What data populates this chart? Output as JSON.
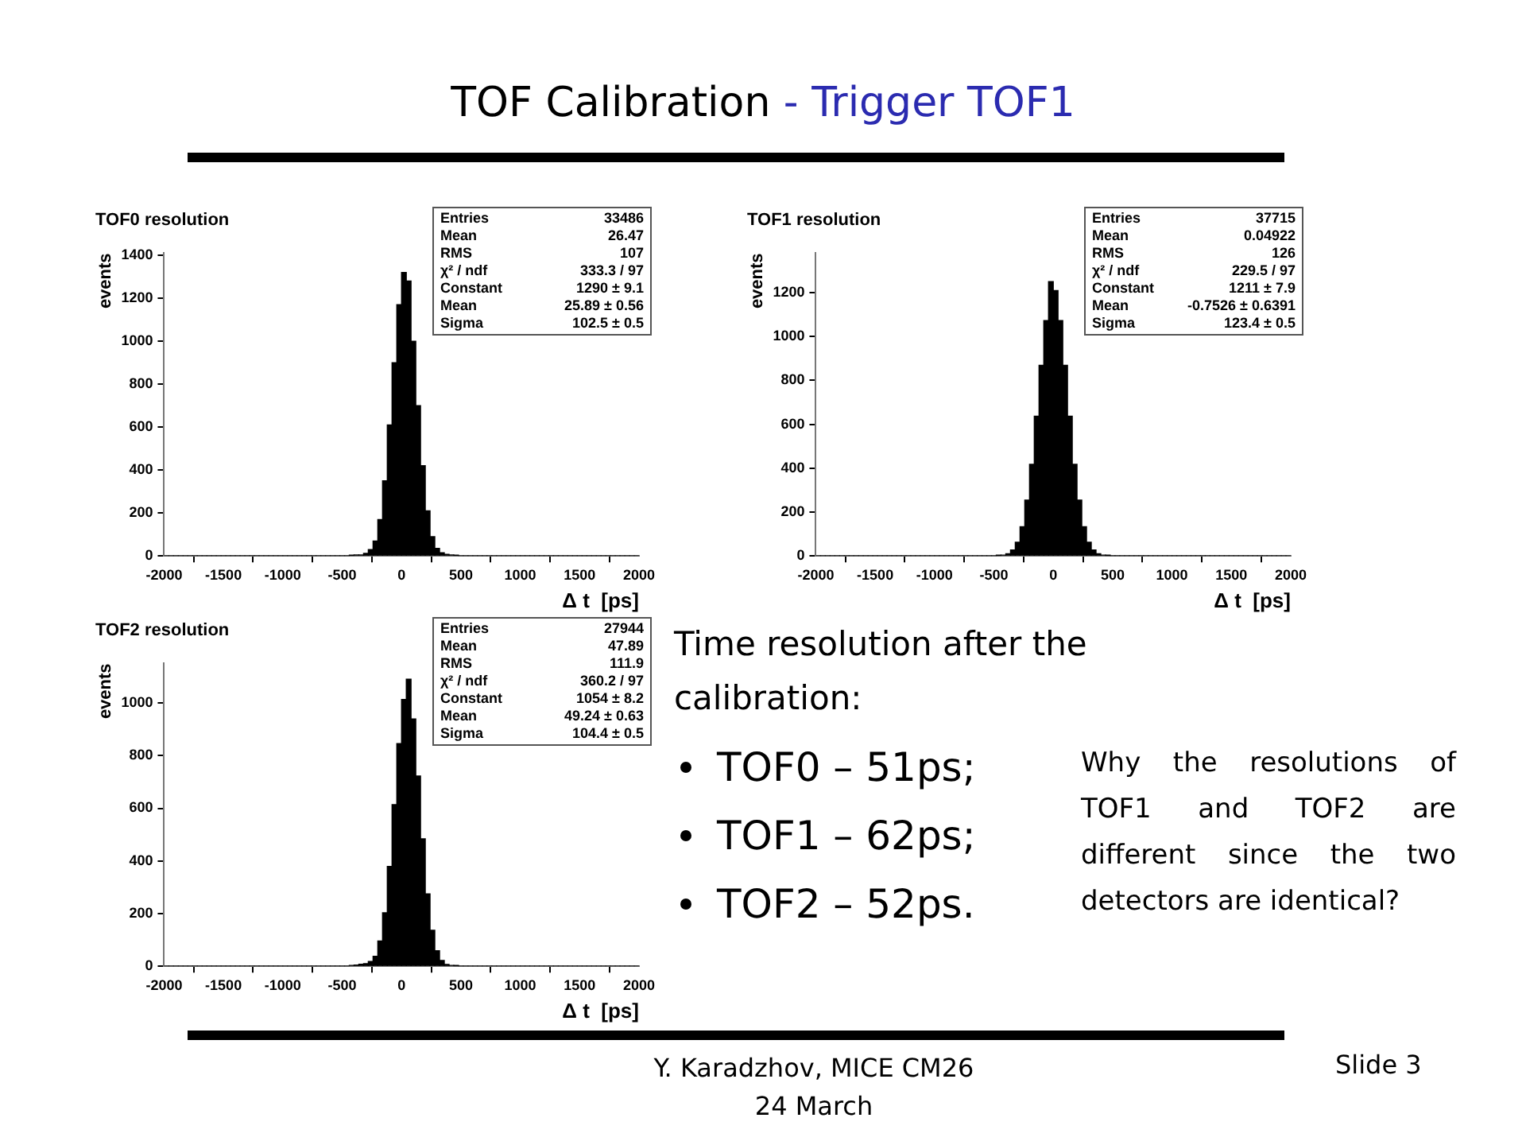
{
  "chart_data": [
    {
      "type": "histogram",
      "title": "TOF0 resolution",
      "xlabel": "Δ t  [ps]",
      "ylabel": "events",
      "color": "#000000",
      "bins": [
        -2000,
        -1960,
        -1920,
        -1880,
        -1840,
        -1800,
        -1760,
        -1720,
        -1680,
        -1640,
        -1600,
        -1560,
        -1520,
        -1480,
        -1440,
        -1400,
        -1360,
        -1320,
        -1280,
        -1240,
        -1200,
        -1160,
        -1120,
        -1080,
        -1040,
        -1000,
        -960,
        -920,
        -880,
        -840,
        -800,
        -760,
        -720,
        -680,
        -640,
        -600,
        -560,
        -520,
        -480,
        -440,
        -400,
        -360,
        -320,
        -280,
        -240,
        -200,
        -160,
        -120,
        -80,
        -40,
        0,
        40,
        80,
        120,
        160,
        200,
        240,
        280,
        320,
        360,
        400,
        440,
        480,
        520,
        560,
        600,
        640,
        680,
        720,
        760,
        800,
        840,
        880,
        920,
        960,
        1000,
        1040,
        1080,
        1120,
        1160,
        1200,
        1240,
        1280,
        1320,
        1360,
        1400,
        1440,
        1480,
        1520,
        1560,
        1600,
        1640,
        1680,
        1720,
        1760,
        1800,
        1840,
        1880,
        1920,
        1960,
        2000
      ],
      "values": [
        0,
        0,
        0,
        0,
        0,
        0,
        0,
        0,
        0,
        0,
        0,
        0,
        0,
        0,
        0,
        0,
        0,
        0,
        0,
        0,
        0,
        0,
        0,
        0,
        0,
        0,
        0,
        0,
        0,
        0,
        0,
        0,
        0,
        0,
        0,
        0,
        0,
        0,
        0,
        2,
        5,
        5,
        12,
        30,
        70,
        170,
        350,
        610,
        900,
        1170,
        1320,
        1280,
        1000,
        700,
        420,
        210,
        90,
        35,
        15,
        8,
        5,
        2,
        0,
        0,
        0,
        0,
        0,
        0,
        0,
        0,
        0,
        0,
        0,
        0,
        0,
        0,
        0,
        0,
        0,
        0,
        0,
        0,
        0,
        0,
        0,
        0,
        0,
        0,
        0,
        0,
        0,
        0,
        0,
        0,
        0,
        0,
        0,
        0,
        0,
        0
      ],
      "xlim": [
        -2000,
        2000
      ],
      "xticks": [
        -2000,
        -1500,
        -1000,
        -500,
        0,
        500,
        1000,
        1500,
        2000
      ],
      "ylim": [
        0,
        1410
      ],
      "yticks": [
        0,
        200,
        400,
        600,
        800,
        1000,
        1200,
        1400
      ],
      "annotations": [
        "Entries  33486",
        "Mean  26.47",
        "RMS  107",
        "χ² / ndf  333.3 / 97",
        "Constant  1290 ± 9.1",
        "Mean  25.89 ± 0.56",
        "Sigma  102.5 ± 0.5"
      ]
    },
    {
      "type": "histogram",
      "title": "TOF1 resolution",
      "xlabel": "Δ t  [ps]",
      "ylabel": "events",
      "color": "#000000",
      "bins": [
        -2000,
        -1960,
        -1920,
        -1880,
        -1840,
        -1800,
        -1760,
        -1720,
        -1680,
        -1640,
        -1600,
        -1560,
        -1520,
        -1480,
        -1440,
        -1400,
        -1360,
        -1320,
        -1280,
        -1240,
        -1200,
        -1160,
        -1120,
        -1080,
        -1040,
        -1000,
        -960,
        -920,
        -880,
        -840,
        -800,
        -760,
        -720,
        -680,
        -640,
        -600,
        -560,
        -520,
        -480,
        -440,
        -400,
        -360,
        -320,
        -280,
        -240,
        -200,
        -160,
        -120,
        -80,
        -40,
        0,
        40,
        80,
        120,
        160,
        200,
        240,
        280,
        320,
        360,
        400,
        440,
        480,
        520,
        560,
        600,
        640,
        680,
        720,
        760,
        800,
        840,
        880,
        920,
        960,
        1000,
        1040,
        1080,
        1120,
        1160,
        1200,
        1240,
        1280,
        1320,
        1360,
        1400,
        1440,
        1480,
        1520,
        1560,
        1600,
        1640,
        1680,
        1720,
        1760,
        1800,
        1840,
        1880,
        1920,
        1960,
        2000
      ],
      "values": [
        0,
        0,
        0,
        0,
        0,
        0,
        0,
        0,
        0,
        0,
        0,
        0,
        0,
        0,
        0,
        0,
        0,
        0,
        0,
        0,
        0,
        0,
        0,
        0,
        0,
        0,
        0,
        0,
        0,
        0,
        0,
        0,
        0,
        0,
        0,
        0,
        0,
        0,
        1,
        4,
        10,
        27,
        63,
        133,
        255,
        418,
        637,
        869,
        1073,
        1250,
        1210,
        1073,
        869,
        637,
        418,
        255,
        133,
        63,
        27,
        10,
        4,
        1,
        0,
        0,
        0,
        0,
        0,
        0,
        0,
        0,
        0,
        0,
        0,
        0,
        0,
        0,
        0,
        0,
        0,
        0,
        0,
        0,
        0,
        0,
        0,
        0,
        0,
        0,
        0,
        0,
        0,
        0,
        0,
        0,
        0,
        0,
        0,
        0,
        0,
        0
      ],
      "xlim": [
        -2000,
        2000
      ],
      "xticks": [
        -2000,
        -1500,
        -1000,
        -500,
        0,
        500,
        1000,
        1500,
        2000
      ],
      "ylim": [
        0,
        1380
      ],
      "yticks": [
        0,
        200,
        400,
        600,
        800,
        1000,
        1200
      ],
      "annotations": [
        "Entries  37715",
        "Mean  0.04922",
        "RMS  126",
        "χ² / ndf  229.5 / 97",
        "Constant  1211 ± 7.9",
        "Mean  -0.7526 ± 0.6391",
        "Sigma  123.4 ± 0.5"
      ]
    },
    {
      "type": "histogram",
      "title": "TOF2 resolution",
      "xlabel": "Δ t  [ps]",
      "ylabel": "events",
      "color": "#000000",
      "bins": [
        -2000,
        -1960,
        -1920,
        -1880,
        -1840,
        -1800,
        -1760,
        -1720,
        -1680,
        -1640,
        -1600,
        -1560,
        -1520,
        -1480,
        -1440,
        -1400,
        -1360,
        -1320,
        -1280,
        -1240,
        -1200,
        -1160,
        -1120,
        -1080,
        -1040,
        -1000,
        -960,
        -920,
        -880,
        -840,
        -800,
        -760,
        -720,
        -680,
        -640,
        -600,
        -560,
        -520,
        -480,
        -440,
        -400,
        -360,
        -320,
        -280,
        -240,
        -200,
        -160,
        -120,
        -80,
        -40,
        0,
        40,
        80,
        120,
        160,
        200,
        240,
        280,
        320,
        360,
        400,
        440,
        480,
        520,
        560,
        600,
        640,
        680,
        720,
        760,
        800,
        840,
        880,
        920,
        960,
        1000,
        1040,
        1080,
        1120,
        1160,
        1200,
        1240,
        1280,
        1320,
        1360,
        1400,
        1440,
        1480,
        1520,
        1560,
        1600,
        1640,
        1680,
        1720,
        1760,
        1800,
        1840,
        1880,
        1920,
        1960,
        2000
      ],
      "values": [
        0,
        0,
        0,
        0,
        0,
        0,
        0,
        0,
        0,
        0,
        0,
        0,
        0,
        0,
        0,
        0,
        0,
        0,
        0,
        0,
        0,
        0,
        0,
        0,
        0,
        0,
        0,
        0,
        0,
        0,
        0,
        0,
        0,
        0,
        0,
        0,
        0,
        0,
        0,
        3,
        5,
        8,
        10,
        18,
        38,
        96,
        203,
        379,
        614,
        846,
        1013,
        1090,
        939,
        723,
        484,
        275,
        137,
        59,
        22,
        7,
        3,
        1,
        0,
        0,
        0,
        0,
        0,
        0,
        0,
        0,
        0,
        0,
        0,
        0,
        0,
        0,
        0,
        0,
        0,
        0,
        0,
        0,
        0,
        0,
        0,
        0,
        0,
        0,
        0,
        0,
        0,
        0,
        0,
        0,
        0,
        0,
        0,
        0,
        0,
        0
      ],
      "xlim": [
        -2000,
        2000
      ],
      "xticks": [
        -2000,
        -1500,
        -1000,
        -500,
        0,
        500,
        1000,
        1500,
        2000
      ],
      "ylim": [
        0,
        1150
      ],
      "yticks": [
        0,
        200,
        400,
        600,
        800,
        1000
      ],
      "annotations": [
        "Entries  27944",
        "Mean  47.89",
        "RMS  111.9",
        "χ² / ndf  360.2 / 97",
        "Constant  1054 ± 8.2",
        "Mean  49.24 ± 0.63",
        "Sigma  104.4 ± 0.5"
      ]
    },
    {
      "type": "other",
      "title": "TOF Calibration",
      "subtitle": "- Trigger TOF1",
      "annotations": [
        "Time resolution after the calibration:",
        "TOF0 – 51ps;",
        "TOF1 – 62ps;",
        "TOF2 – 52ps.",
        "Why the resolutions of TOF1 and TOF2 are different since the two detectors are identical?",
        "Y. Karadzhov, MICE CM26   24 March",
        "Slide 3"
      ]
    }
  ]
}
